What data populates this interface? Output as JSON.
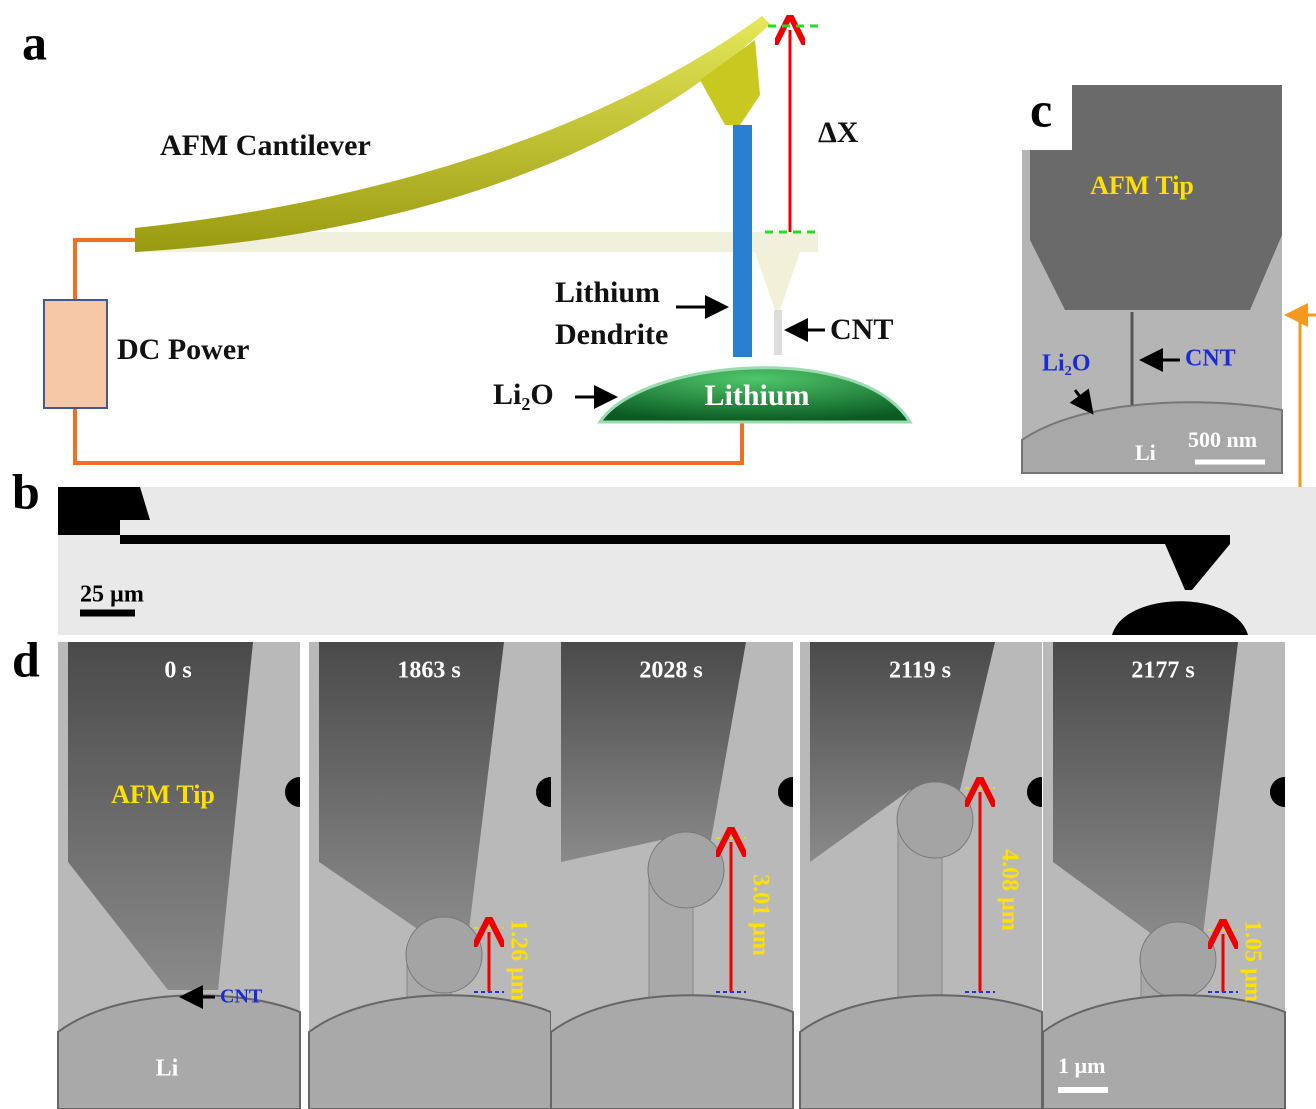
{
  "panels": {
    "a": {
      "label": "a",
      "cantilever": "AFM Cantilever",
      "delta": "ΔX",
      "dendrite": [
        "Lithium",
        "Dendrite"
      ],
      "cnt": "CNT",
      "power": "DC Power",
      "oxide": "Li₂O",
      "lithium": "Lithium"
    },
    "b": {
      "label": "b",
      "scale_bar": "25 µm"
    },
    "c": {
      "label": "c",
      "tip": "AFM Tip",
      "oxide": "Li₂O",
      "cnt": "CNT",
      "li": "Li",
      "scale_bar": "500 nm"
    },
    "d": {
      "label": "d",
      "tip": "AFM Tip",
      "cnt": "CNT",
      "li": "Li",
      "scale_bar": "1 µm",
      "frames": [
        {
          "time": "0 s"
        },
        {
          "time": "1863 s",
          "growth": "1.26 µm"
        },
        {
          "time": "2028 s",
          "growth": "3.01 µm"
        },
        {
          "time": "2119 s",
          "growth": "4.08 µm"
        },
        {
          "time": "2177 s",
          "growth": "1.05 µm"
        }
      ]
    }
  }
}
